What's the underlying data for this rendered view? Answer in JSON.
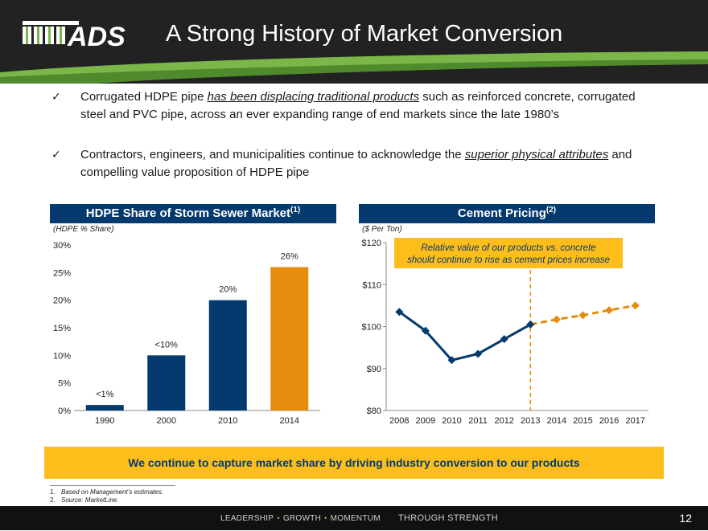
{
  "header": {
    "logo_text": "ADS",
    "title": "A Strong History of Market Conversion",
    "background_color": "#222222",
    "accent_green": "#7ab648"
  },
  "bullets": [
    {
      "icon": "checkmark-icon",
      "before": "Corrugated HDPE pipe ",
      "emphasis": "has been displacing traditional products",
      "after": " such as reinforced concrete, corrugated steel and PVC pipe, across an ever expanding range of end markets since the late 1980’s"
    },
    {
      "icon": "checkmark-icon",
      "before": "Contractors, engineers, and municipalities continue to acknowledge the ",
      "emphasis": "superior physical attributes",
      "after": " and compelling value proposition of HDPE pipe"
    }
  ],
  "left_panel": {
    "title": "HDPE Share of Storm Sewer Market",
    "title_footnote": "(1)",
    "unit_label": "(HDPE % Share)"
  },
  "right_panel": {
    "title": "Cement Pricing",
    "title_footnote": "(2)",
    "unit_label": "($ Per Ton)",
    "callout_line1": "Relative value of our products vs. concrete",
    "callout_line2": "should continue to rise as cement prices increase"
  },
  "chart_data": [
    {
      "type": "bar",
      "title": "HDPE Share of Storm Sewer Market",
      "ylabel": "(HDPE % Share)",
      "categories": [
        "1990",
        "2000",
        "2010",
        "2014"
      ],
      "values": [
        1,
        10,
        20,
        26
      ],
      "data_labels": [
        "<1%",
        "<10%",
        "20%",
        "26%"
      ],
      "bar_colors": [
        "#053a6e",
        "#053a6e",
        "#053a6e",
        "#e48c0c"
      ],
      "ylim": [
        0,
        30
      ],
      "yticks": [
        0,
        5,
        10,
        15,
        20,
        25,
        30
      ],
      "ytick_labels": [
        "0%",
        "5%",
        "10%",
        "15%",
        "20%",
        "25%",
        "30%"
      ],
      "grid": false
    },
    {
      "type": "line",
      "title": "Cement Pricing",
      "ylabel": "($ Per Ton)",
      "x": [
        "2008",
        "2009",
        "2010",
        "2011",
        "2012",
        "2013",
        "2014",
        "2015",
        "2016",
        "2017"
      ],
      "ylim": [
        80,
        120
      ],
      "yticks": [
        80,
        90,
        100,
        110,
        120
      ],
      "ytick_labels": [
        "$80",
        "$90",
        "$100",
        "$110",
        "$120"
      ],
      "series": [
        {
          "name": "Historical",
          "color": "#053a6e",
          "style": "solid",
          "marker": "diamond",
          "x": [
            "2008",
            "2009",
            "2010",
            "2011",
            "2012",
            "2013"
          ],
          "values": [
            103.5,
            99,
            92,
            93.5,
            97,
            100.5
          ]
        },
        {
          "name": "Projected",
          "color": "#e48c0c",
          "style": "dashed",
          "marker": "diamond",
          "x": [
            "2013",
            "2014",
            "2015",
            "2016",
            "2017"
          ],
          "values": [
            100.5,
            101.7,
            102.7,
            103.9,
            105
          ]
        }
      ],
      "vertical_marker_at": "2013",
      "vertical_marker_color": "#e48c0c",
      "grid": false
    }
  ],
  "callout": {
    "text": "We continue to capture market share by driving industry conversion to our products",
    "background": "#fdbd1b",
    "color": "#053a6e"
  },
  "footnotes": [
    {
      "num": "1.",
      "text": "Based on Management’s estimates."
    },
    {
      "num": "2.",
      "text": "Source: MarketLine."
    }
  ],
  "footer": {
    "word1": "LEADERSHIP",
    "word2": "GROWTH",
    "word3": "MOMENTUM",
    "separator": "•",
    "strength": "THROUGH STRENGTH",
    "page_number": "12"
  }
}
